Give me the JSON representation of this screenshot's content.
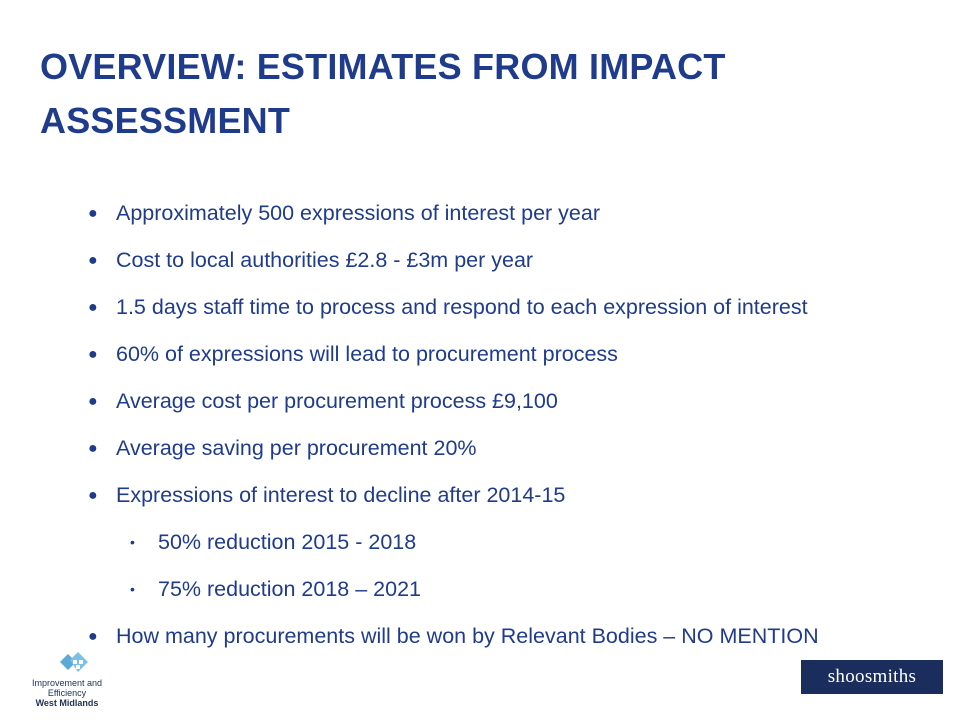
{
  "slide": {
    "title": "OVERVIEW: ESTIMATES FROM IMPACT ASSESSMENT",
    "bullets": [
      {
        "text": "Approximately 500 expressions of interest per year"
      },
      {
        "text": "Cost to local authorities £2.8 - £3m per year"
      },
      {
        "text": "1.5 days staff time to process and respond to each expression of interest"
      },
      {
        "text": "60% of expressions will lead to procurement process"
      },
      {
        "text": "Average cost per procurement process £9,100"
      },
      {
        "text": "Average saving per procurement 20%"
      },
      {
        "text": "Expressions of interest to decline after 2014-15"
      },
      {
        "text": "50% reduction 2015 - 2018"
      },
      {
        "text": "75% reduction 2018 – 2021"
      },
      {
        "text": "How many procurements will be won by Relevant Bodies – NO MENTION"
      }
    ]
  },
  "footer": {
    "left_logo": {
      "line1": "Improvement and",
      "line2": "Efficiency",
      "line3": "West Midlands",
      "icon": "ie-logo-mark-icon"
    },
    "right_logo": {
      "text": "shoosmiths"
    }
  },
  "colors": {
    "title": "#1f3b8c",
    "text": "#1f3b8c",
    "logo_box": "#1b2d5c",
    "logo_mark": "#5aa9d6"
  }
}
